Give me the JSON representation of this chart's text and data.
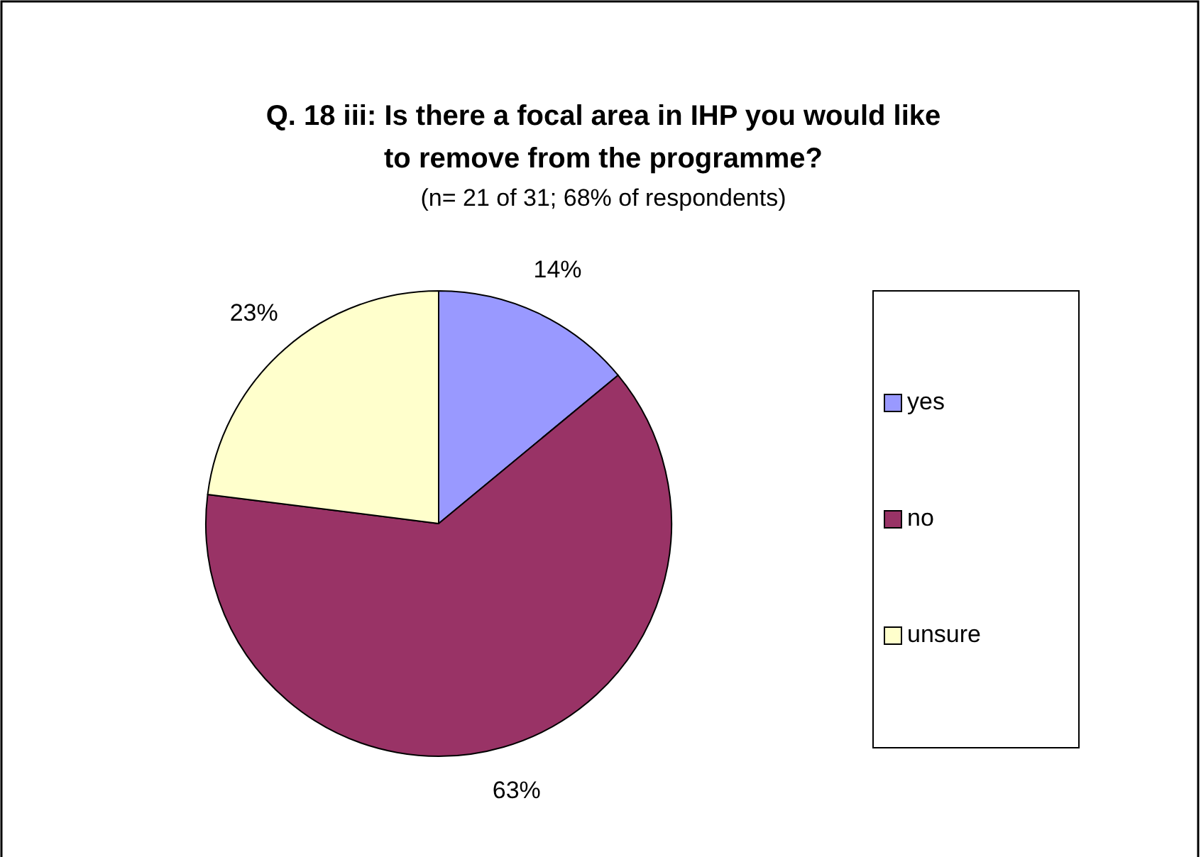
{
  "chart_data": {
    "type": "pie",
    "title": "Q. 18 iii: Is there a focal area in IHP you would like to remove from the programme?",
    "subtitle": "(n= 21 of 31; 68% of respondents)",
    "categories": [
      "yes",
      "no",
      "unsure"
    ],
    "values": [
      14,
      63,
      23
    ],
    "colors": [
      "#9999ff",
      "#993366",
      "#ffffcc"
    ],
    "value_labels": [
      "14%",
      "63%",
      "23%"
    ],
    "legend": "right"
  }
}
